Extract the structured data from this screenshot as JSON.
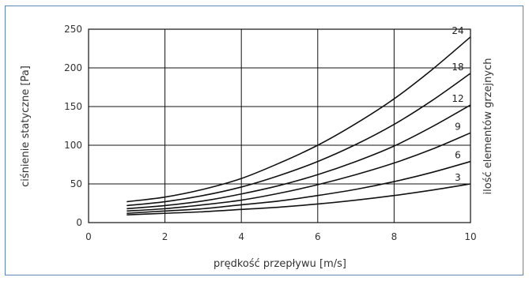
{
  "chart_data": {
    "type": "line",
    "title": "",
    "xlabel": "prędkość przepływu [m/s]",
    "ylabel": "ciśnienie statyczne [Pa]",
    "right_label": "ilość elementów grzejnych",
    "xlim": [
      0,
      10
    ],
    "ylim": [
      0,
      250
    ],
    "x_ticks": [
      "0",
      "2",
      "4",
      "6",
      "8",
      "10"
    ],
    "y_ticks": [
      "0",
      "50",
      "100",
      "150",
      "200",
      "250"
    ],
    "grid": true,
    "x": [
      1,
      2,
      3,
      4,
      5,
      6,
      7,
      8,
      9,
      10
    ],
    "series": [
      {
        "name": "24",
        "values": [
          27,
          33,
          43,
          57,
          77,
          100,
          128,
          160,
          198,
          240
        ]
      },
      {
        "name": "18",
        "values": [
          22,
          27,
          35,
          46,
          61,
          79,
          101,
          127,
          158,
          193
        ]
      },
      {
        "name": "12",
        "values": [
          18,
          22,
          28,
          37,
          48,
          62,
          79,
          99,
          124,
          152
        ]
      },
      {
        "name": "9",
        "values": [
          15,
          18,
          23,
          29,
          38,
          49,
          62,
          77,
          95,
          116
        ]
      },
      {
        "name": "6",
        "values": [
          12,
          15,
          18,
          23,
          28,
          35,
          43,
          53,
          65,
          79
        ]
      },
      {
        "name": "3",
        "values": [
          10,
          12,
          14,
          17,
          20,
          24,
          29,
          35,
          42,
          50
        ]
      }
    ]
  }
}
